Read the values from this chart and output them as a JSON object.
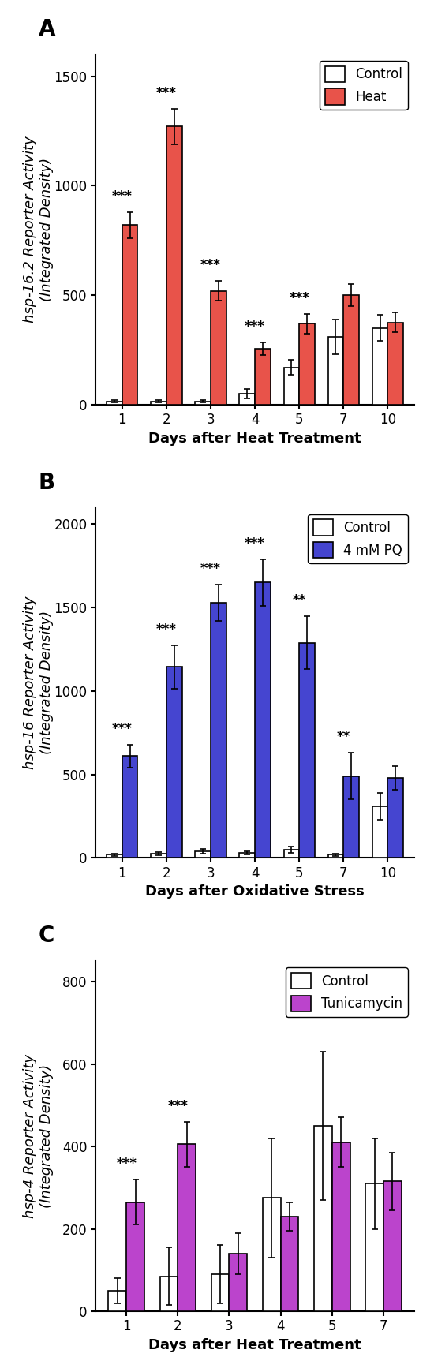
{
  "panel_A": {
    "label": "A",
    "days": [
      1,
      2,
      3,
      4,
      5,
      7,
      10
    ],
    "control_vals": [
      15,
      15,
      15,
      50,
      170,
      310,
      350
    ],
    "control_err": [
      5,
      5,
      5,
      20,
      35,
      80,
      60
    ],
    "treat_vals": [
      820,
      1270,
      520,
      255,
      370,
      500,
      375
    ],
    "treat_err": [
      60,
      80,
      45,
      30,
      45,
      50,
      45
    ],
    "treat_color": "#e8534a",
    "treat_label": "Heat",
    "ylabel_italic": "hsp-16.2",
    "ylabel_normal": " Reporter Activity\n(Integrated Density)",
    "xlabel": "Days after Heat Treatment",
    "ylim": [
      0,
      1600
    ],
    "yticks": [
      0,
      500,
      1000,
      1500
    ],
    "significance": [
      "***",
      "***",
      "***",
      "***",
      "***",
      null,
      null
    ]
  },
  "panel_B": {
    "label": "B",
    "days": [
      1,
      2,
      3,
      4,
      5,
      7,
      10
    ],
    "control_vals": [
      20,
      25,
      40,
      30,
      50,
      20,
      310
    ],
    "control_err": [
      8,
      8,
      15,
      10,
      20,
      8,
      80
    ],
    "treat_vals": [
      610,
      1145,
      1530,
      1650,
      1290,
      490,
      480
    ],
    "treat_err": [
      70,
      130,
      110,
      140,
      160,
      140,
      70
    ],
    "treat_color": "#4545d0",
    "treat_label": "4 mM PQ",
    "ylabel_italic": "hsp-16",
    "ylabel_normal": " Reporter Activity\n(Integrated Density)",
    "xlabel": "Days after Oxidative Stress",
    "ylim": [
      0,
      2100
    ],
    "yticks": [
      0,
      500,
      1000,
      1500,
      2000
    ],
    "significance": [
      "***",
      "***",
      "***",
      "***",
      "**",
      "**",
      null
    ]
  },
  "panel_C": {
    "label": "C",
    "days": [
      1,
      2,
      3,
      4,
      5,
      7
    ],
    "control_vals": [
      50,
      85,
      90,
      275,
      450,
      310
    ],
    "control_err": [
      30,
      70,
      70,
      145,
      180,
      110
    ],
    "treat_vals": [
      265,
      405,
      140,
      230,
      410,
      315
    ],
    "treat_err": [
      55,
      55,
      50,
      35,
      60,
      70
    ],
    "treat_color": "#bb44cc",
    "treat_label": "Tunicamycin",
    "ylabel_italic": "hsp-4",
    "ylabel_normal": " Reporter Activity\n(Integrated Density)",
    "xlabel": "Days after Heat Treatment",
    "ylim": [
      0,
      850
    ],
    "yticks": [
      0,
      200,
      400,
      600,
      800
    ],
    "significance": [
      "***",
      "***",
      null,
      null,
      null,
      null
    ]
  },
  "control_color": "#ffffff",
  "control_label": "Control",
  "bar_width": 0.35,
  "edge_color": "#000000",
  "background_color": "#ffffff",
  "label_fontsize": 20,
  "axis_label_fontsize": 13,
  "tick_fontsize": 12,
  "legend_fontsize": 12,
  "sig_fontsize": 12
}
